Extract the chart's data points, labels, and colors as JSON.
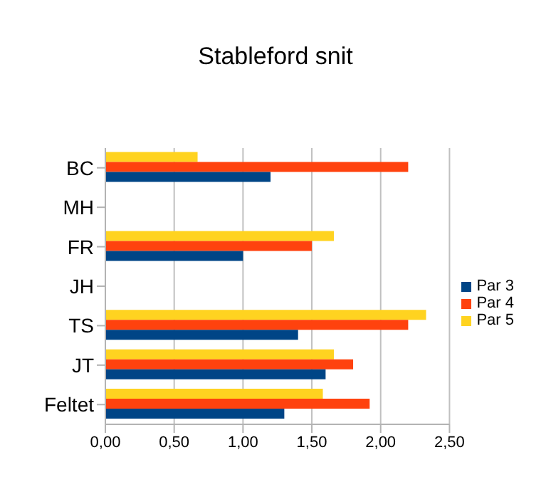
{
  "chart_data": {
    "type": "bar",
    "orientation": "horizontal",
    "title": "Stableford snit",
    "categories": [
      "BC",
      "MH",
      "FR",
      "JH",
      "TS",
      "JT",
      "Feltet"
    ],
    "series": [
      {
        "name": "Par 5",
        "color": "#ffd320",
        "values": [
          0.67,
          null,
          1.66,
          null,
          2.33,
          1.66,
          1.58
        ]
      },
      {
        "name": "Par 4",
        "color": "#ff420e",
        "values": [
          2.2,
          null,
          1.5,
          null,
          2.2,
          1.8,
          1.92
        ]
      },
      {
        "name": "Par 3",
        "color": "#004586",
        "values": [
          1.2,
          null,
          1.0,
          null,
          1.4,
          1.6,
          1.3
        ]
      }
    ],
    "xlim": [
      0,
      2.5
    ],
    "xticks": [
      {
        "value": 0,
        "label": "0,00"
      },
      {
        "value": 0.5,
        "label": "0,50"
      },
      {
        "value": 1,
        "label": "1,00"
      },
      {
        "value": 1.5,
        "label": "1,50"
      },
      {
        "value": 2,
        "label": "2,00"
      },
      {
        "value": 2.5,
        "label": "2,50"
      }
    ],
    "grid": "x",
    "legend": "right"
  }
}
